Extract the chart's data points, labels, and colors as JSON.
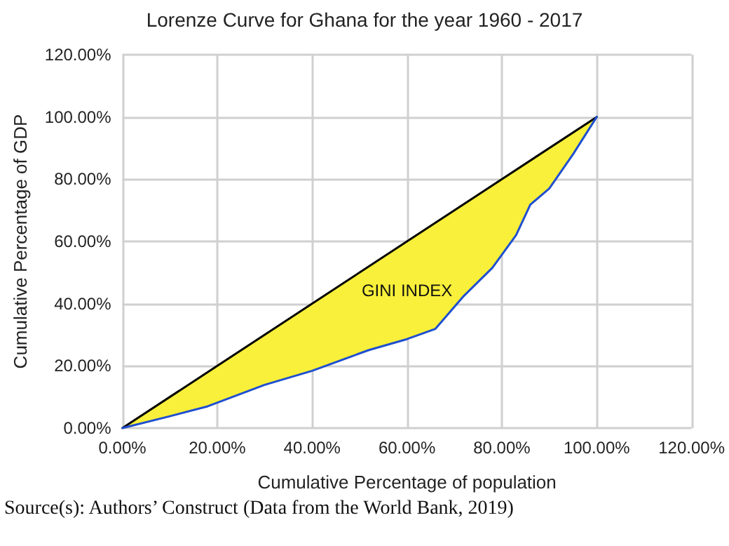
{
  "chart_data": {
    "type": "line",
    "title": "Lorenze Curve for Ghana for the year 1960 - 2017",
    "xlabel": "Cumulative Percentage of population",
    "ylabel": "Cumulative Percentage of GDP",
    "series": [
      {
        "color": "#000000",
        "x": [
          0,
          100
        ],
        "values": [
          0,
          100
        ]
      },
      {
        "color": "#1f4fd0",
        "x": [
          0,
          10,
          18,
          30,
          40,
          52,
          60,
          66,
          72,
          78,
          83,
          86,
          90,
          95,
          100
        ],
        "values": [
          0,
          3.8,
          7,
          13.9,
          18.4,
          25.1,
          28.6,
          31.9,
          42.5,
          51.5,
          62,
          71.8,
          77,
          88,
          100
        ],
        "lower": [
          0,
          3.8,
          7,
          13.9,
          18.4,
          25.1,
          28.6,
          31.9,
          42.5,
          51.5,
          62,
          71.8,
          77,
          88,
          100
        ],
        "upper": [
          0,
          10,
          18,
          30,
          40,
          52,
          60,
          66,
          72,
          78,
          83,
          86,
          90,
          95,
          100
        ]
      }
    ],
    "xlim": [
      0,
      120
    ],
    "ylim": [
      0,
      120
    ],
    "xticks": [
      {
        "value": 0,
        "label": "0.00%"
      },
      {
        "value": 20,
        "label": "20.00%"
      },
      {
        "value": 40,
        "label": "40.00%"
      },
      {
        "value": 60,
        "label": "60.00%"
      },
      {
        "value": 80,
        "label": "80.00%"
      },
      {
        "value": 100,
        "label": "100.00%"
      },
      {
        "value": 120,
        "label": "120.00%"
      }
    ],
    "yticks": [
      {
        "value": 0,
        "label": "0.00%"
      },
      {
        "value": 20,
        "label": "20.00%"
      },
      {
        "value": 40,
        "label": "40.00%"
      },
      {
        "value": 60,
        "label": "60.00%"
      },
      {
        "value": 80,
        "label": "80.00%"
      },
      {
        "value": 100,
        "label": "100.00%"
      },
      {
        "value": 120,
        "label": "120.00%"
      }
    ],
    "grid": true,
    "marker": "none",
    "line_style": "solid",
    "annotations": [
      "GINI INDEX",
      "Source(s): Authors’ Construct (Data from the World Bank, 2019)"
    ]
  }
}
